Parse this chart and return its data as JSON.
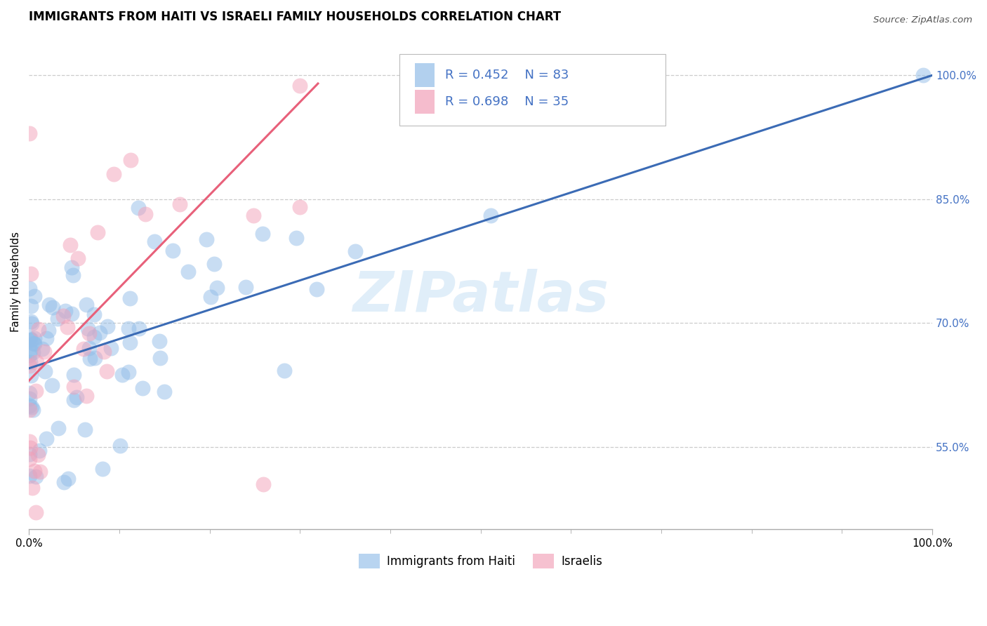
{
  "title": "IMMIGRANTS FROM HAITI VS ISRAELI FAMILY HOUSEHOLDS CORRELATION CHART",
  "source": "Source: ZipAtlas.com",
  "ylabel": "Family Households",
  "watermark": "ZIPatlas",
  "label_haiti": "Immigrants from Haiti",
  "label_israel": "Israelis",
  "blue_color": "#92BDE8",
  "pink_color": "#F2A0B8",
  "blue_line_color": "#3B6BB5",
  "pink_line_color": "#E8607A",
  "tick_color": "#4472C4",
  "title_fontsize": 12,
  "axis_label_fontsize": 11,
  "tick_fontsize": 11,
  "legend_fontsize": 13,
  "xlim": [
    0,
    1
  ],
  "ylim": [
    0.45,
    1.05
  ],
  "ytick_vals": [
    0.55,
    0.7,
    0.85,
    1.0
  ],
  "ytick_labels": [
    "55.0%",
    "70.0%",
    "85.0%",
    "100.0%"
  ]
}
